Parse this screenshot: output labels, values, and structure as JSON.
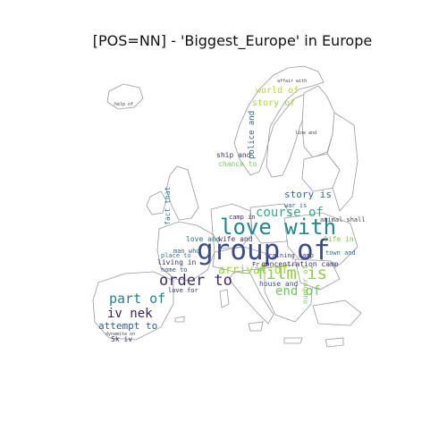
{
  "title": "[POS=NN] - 'Biggest_Europe' in Europe",
  "map": {
    "region": "Europe",
    "outline_color": "#9a9a9a"
  },
  "words": [
    {
      "text": "group of",
      "color": "#3b4c88"
    },
    {
      "text": "love with",
      "color": "#24868e"
    },
    {
      "text": "film is",
      "color": "#8fd14a"
    },
    {
      "text": "order to",
      "color": "#3e2b6e"
    },
    {
      "text": "course of",
      "color": "#3aa97f"
    },
    {
      "text": "arrival of",
      "color": "#9bd542"
    },
    {
      "text": "end of",
      "color": "#6cc95a"
    },
    {
      "text": "part of",
      "color": "#2b7f8e"
    },
    {
      "text": "iv nek",
      "color": "#3b1e5a"
    },
    {
      "text": "attempt to",
      "color": "#36588c"
    },
    {
      "text": "story is",
      "color": "#31678e"
    },
    {
      "text": "world of",
      "color": "#b8d24a"
    },
    {
      "text": "story of",
      "color": "#a6d645"
    },
    {
      "text": "police and",
      "color": "#35658b"
    },
    {
      "text": "fact that",
      "color": "#2f7a88"
    },
    {
      "text": "camp in",
      "color": "#4a2a70"
    },
    {
      "text": "war is",
      "color": "#3c5a90"
    },
    {
      "text": "animal shall",
      "color": "#444"
    },
    {
      "text": "life in",
      "color": "#7ac94e"
    },
    {
      "text": "town and",
      "color": "#2c6f8c"
    },
    {
      "text": "concentration camp",
      "color": "#3b2f6b"
    },
    {
      "text": "training camp",
      "color": "#4a3a7a"
    },
    {
      "text": "love and",
      "color": "#2e6e8a"
    },
    {
      "text": "wife and",
      "color": "#46307a"
    },
    {
      "text": "house and",
      "color": "#3a4e88"
    },
    {
      "text": "number of",
      "color": "#7fcc52"
    },
    {
      "text": "living in",
      "color": "#3e2f6e"
    },
    {
      "text": "place to",
      "color": "#2a7f8c"
    },
    {
      "text": "home to",
      "color": "#39508c"
    },
    {
      "text": "love for",
      "color": "#3a2a68"
    },
    {
      "text": "man who",
      "color": "#3a5f8c"
    },
    {
      "text": "ship and",
      "color": "#3f2f6e"
    },
    {
      "text": "chance to",
      "color": "#6fc65a"
    },
    {
      "text": "Sk iv",
      "color": "#3a2a68"
    },
    {
      "text": "Fr d",
      "color": "#3a2a68"
    },
    {
      "text": "help of",
      "color": "#444"
    },
    {
      "text": "affair with",
      "color": "#444"
    },
    {
      "text": "line and",
      "color": "#444"
    },
    {
      "text": "dynamite on",
      "color": "#444"
    }
  ]
}
